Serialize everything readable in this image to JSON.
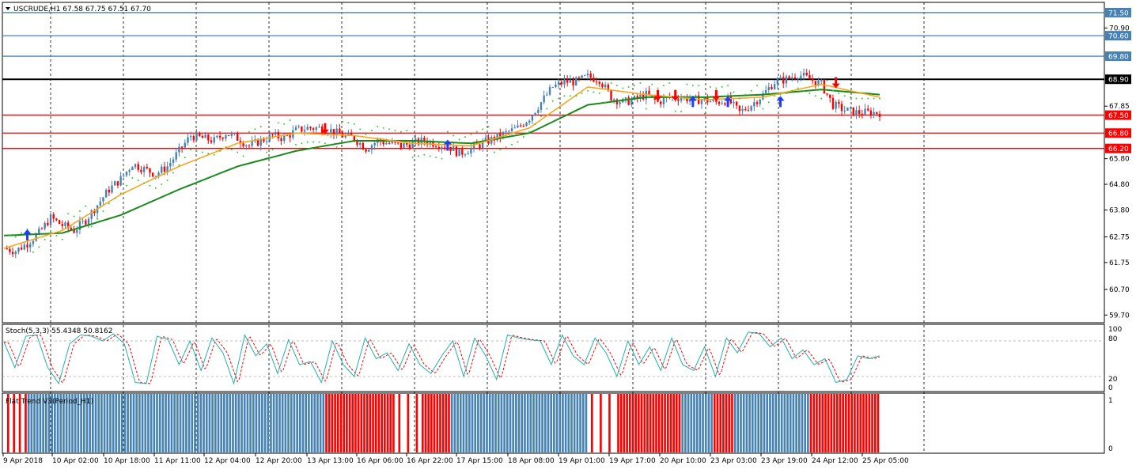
{
  "header": {
    "symbol_line": "USCRUDE,H1  67.58 67.75 67.51 67.70"
  },
  "stoch": {
    "label": "Stoch(5,3,3) 55.4348 50.8162",
    "ticks": [
      "100",
      "80",
      "20",
      "0"
    ]
  },
  "flat_trend": {
    "label": "Flat Trend V3(Period_H1)",
    "ticks": [
      "1",
      "0"
    ]
  },
  "colors": {
    "bull": "#4682b4",
    "bear": "#ff0000",
    "ma_fast": "#f5a623",
    "ma_slow": "#1a8a1a",
    "psar": "#32cd32",
    "res_line": "#4682b4",
    "sup_line": "#ff0000",
    "pivot_line": "#000000",
    "stoch_main": "#20b2aa",
    "stoch_signal": "#ff0000",
    "arrow_buy": "#1e3cff",
    "arrow_sell": "#ff0000"
  },
  "chart_data": {
    "type": "candlestick",
    "symbol": "USCRUDE",
    "timeframe": "H1",
    "ohlc_last": {
      "open": 67.58,
      "high": 67.75,
      "low": 67.51,
      "close": 67.7
    },
    "price_axis": {
      "range": [
        59.4,
        71.9
      ],
      "ticks": [
        "71.50",
        "70.90",
        "70.60",
        "69.80",
        "68.90",
        "67.85",
        "67.50",
        "66.80",
        "66.20",
        "65.80",
        "64.80",
        "63.80",
        "62.75",
        "61.75",
        "60.70",
        "59.70"
      ]
    },
    "time_axis": {
      "labels": [
        "9 Apr 2018",
        "10 Apr 02:00",
        "10 Apr 18:00",
        "11 Apr 11:00",
        "12 Apr 04:00",
        "12 Apr 20:00",
        "13 Apr 13:00",
        "16 Apr 06:00",
        "16 Apr 22:00",
        "17 Apr 15:00",
        "18 Apr 08:00",
        "19 Apr 01:00",
        "19 Apr 17:00",
        "20 Apr 10:00",
        "23 Apr 03:00",
        "23 Apr 19:00",
        "24 Apr 12:00",
        "25 Apr 05:00"
      ]
    },
    "horizontal_levels": [
      {
        "price": 71.5,
        "label": "71.50",
        "kind": "resistance"
      },
      {
        "price": 70.6,
        "label": "70.60",
        "kind": "resistance"
      },
      {
        "price": 69.8,
        "label": "69.80",
        "kind": "resistance"
      },
      {
        "price": 68.9,
        "label": "68.90",
        "kind": "pivot"
      },
      {
        "price": 67.5,
        "label": "67.50",
        "kind": "support"
      },
      {
        "price": 66.8,
        "label": "66.80",
        "kind": "support"
      },
      {
        "price": 66.2,
        "label": "66.20",
        "kind": "support"
      }
    ],
    "close_path": [
      [
        0,
        62.3
      ],
      [
        4,
        62.2
      ],
      [
        8,
        62.5
      ],
      [
        12,
        62.9
      ],
      [
        16,
        63.5
      ],
      [
        20,
        63.2
      ],
      [
        24,
        63.0
      ],
      [
        28,
        63.4
      ],
      [
        32,
        64.0
      ],
      [
        36,
        64.6
      ],
      [
        40,
        65.0
      ],
      [
        44,
        65.6
      ],
      [
        48,
        65.4
      ],
      [
        52,
        65.2
      ],
      [
        56,
        65.5
      ],
      [
        60,
        66.1
      ],
      [
        64,
        66.7
      ],
      [
        68,
        66.6
      ],
      [
        72,
        66.5
      ],
      [
        76,
        66.8
      ],
      [
        80,
        66.6
      ],
      [
        84,
        66.3
      ],
      [
        88,
        66.5
      ],
      [
        92,
        66.7
      ],
      [
        96,
        66.6
      ],
      [
        100,
        66.9
      ],
      [
        104,
        67.0
      ],
      [
        108,
        67.0
      ],
      [
        112,
        66.9
      ],
      [
        116,
        66.7
      ],
      [
        120,
        66.6
      ],
      [
        124,
        66.2
      ],
      [
        128,
        66.5
      ],
      [
        132,
        66.4
      ],
      [
        136,
        66.3
      ],
      [
        140,
        66.4
      ],
      [
        144,
        66.5
      ],
      [
        148,
        66.4
      ],
      [
        152,
        66.3
      ],
      [
        156,
        66.0
      ],
      [
        160,
        66.2
      ],
      [
        164,
        66.4
      ],
      [
        168,
        66.6
      ],
      [
        172,
        66.8
      ],
      [
        176,
        67.0
      ],
      [
        180,
        67.4
      ],
      [
        184,
        68.0
      ],
      [
        188,
        68.6
      ],
      [
        192,
        68.8
      ],
      [
        196,
        68.8
      ],
      [
        200,
        69.0
      ],
      [
        204,
        68.9
      ],
      [
        208,
        68.2
      ],
      [
        212,
        68.0
      ],
      [
        216,
        68.1
      ],
      [
        220,
        68.3
      ],
      [
        224,
        68.0
      ],
      [
        228,
        68.2
      ],
      [
        232,
        68.2
      ],
      [
        236,
        68.1
      ],
      [
        240,
        68.1
      ],
      [
        244,
        68.0
      ],
      [
        248,
        68.1
      ],
      [
        252,
        67.6
      ],
      [
        256,
        67.9
      ],
      [
        260,
        68.3
      ],
      [
        264,
        68.8
      ],
      [
        268,
        68.9
      ],
      [
        272,
        69.1
      ],
      [
        276,
        68.9
      ],
      [
        280,
        68.7
      ],
      [
        284,
        67.9
      ],
      [
        288,
        67.7
      ],
      [
        292,
        67.6
      ],
      [
        296,
        67.6
      ],
      [
        300,
        67.6
      ]
    ],
    "stoch_path": [
      [
        0,
        78
      ],
      [
        3,
        35
      ],
      [
        6,
        88
      ],
      [
        9,
        90
      ],
      [
        12,
        35
      ],
      [
        15,
        8
      ],
      [
        18,
        75
      ],
      [
        21,
        90
      ],
      [
        24,
        88
      ],
      [
        27,
        80
      ],
      [
        30,
        92
      ],
      [
        33,
        75
      ],
      [
        36,
        10
      ],
      [
        39,
        8
      ],
      [
        42,
        88
      ],
      [
        45,
        82
      ],
      [
        48,
        40
      ],
      [
        51,
        80
      ],
      [
        54,
        30
      ],
      [
        57,
        85
      ],
      [
        60,
        60
      ],
      [
        63,
        8
      ],
      [
        66,
        90
      ],
      [
        69,
        55
      ],
      [
        72,
        75
      ],
      [
        75,
        25
      ],
      [
        78,
        82
      ],
      [
        81,
        40
      ],
      [
        84,
        45
      ],
      [
        87,
        10
      ],
      [
        90,
        80
      ],
      [
        93,
        40
      ],
      [
        96,
        20
      ],
      [
        99,
        85
      ],
      [
        102,
        50
      ],
      [
        105,
        60
      ],
      [
        108,
        30
      ],
      [
        111,
        75
      ],
      [
        114,
        40
      ],
      [
        117,
        25
      ],
      [
        120,
        55
      ],
      [
        123,
        80
      ],
      [
        126,
        20
      ],
      [
        129,
        85
      ],
      [
        132,
        55
      ],
      [
        135,
        15
      ],
      [
        138,
        90
      ],
      [
        141,
        85
      ],
      [
        144,
        82
      ],
      [
        147,
        80
      ],
      [
        150,
        40
      ],
      [
        153,
        90
      ],
      [
        156,
        55
      ],
      [
        159,
        40
      ],
      [
        162,
        85
      ],
      [
        165,
        60
      ],
      [
        168,
        20
      ],
      [
        171,
        80
      ],
      [
        174,
        40
      ],
      [
        177,
        70
      ],
      [
        180,
        30
      ],
      [
        183,
        85
      ],
      [
        186,
        40
      ],
      [
        189,
        30
      ],
      [
        192,
        70
      ],
      [
        195,
        20
      ],
      [
        198,
        85
      ],
      [
        201,
        60
      ],
      [
        204,
        95
      ],
      [
        207,
        92
      ],
      [
        210,
        70
      ],
      [
        213,
        85
      ],
      [
        216,
        50
      ],
      [
        219,
        65
      ],
      [
        222,
        40
      ],
      [
        225,
        50
      ],
      [
        228,
        10
      ],
      [
        231,
        15
      ],
      [
        234,
        55
      ],
      [
        237,
        50
      ],
      [
        240,
        55
      ]
    ],
    "ma_fast_path": [
      [
        0,
        62.3
      ],
      [
        20,
        63.0
      ],
      [
        40,
        64.4
      ],
      [
        60,
        65.5
      ],
      [
        80,
        66.4
      ],
      [
        100,
        66.8
      ],
      [
        120,
        66.7
      ],
      [
        140,
        66.4
      ],
      [
        160,
        66.3
      ],
      [
        180,
        67.0
      ],
      [
        200,
        68.6
      ],
      [
        220,
        68.3
      ],
      [
        240,
        68.1
      ],
      [
        260,
        68.2
      ],
      [
        280,
        68.7
      ],
      [
        300,
        68.2
      ]
    ],
    "ma_slow_path": [
      [
        0,
        62.8
      ],
      [
        20,
        62.9
      ],
      [
        40,
        63.6
      ],
      [
        60,
        64.6
      ],
      [
        80,
        65.5
      ],
      [
        100,
        66.1
      ],
      [
        120,
        66.5
      ],
      [
        140,
        66.5
      ],
      [
        160,
        66.4
      ],
      [
        180,
        66.8
      ],
      [
        200,
        67.9
      ],
      [
        220,
        68.2
      ],
      [
        240,
        68.2
      ],
      [
        260,
        68.3
      ],
      [
        280,
        68.5
      ],
      [
        300,
        68.3
      ]
    ],
    "buy_arrows": [
      [
        8,
        62.8
      ],
      [
        152,
        66.3
      ],
      [
        236,
        68.0
      ],
      [
        248,
        68.0
      ],
      [
        266,
        68.0
      ]
    ],
    "sell_arrows": [
      [
        110,
        67.0
      ],
      [
        224,
        68.3
      ],
      [
        230,
        68.3
      ],
      [
        244,
        68.3
      ],
      [
        285,
        68.8
      ]
    ],
    "flat_trend_segments": [
      {
        "from": 0,
        "to": 8,
        "state": "mixed"
      },
      {
        "from": 8,
        "to": 110,
        "state": "up"
      },
      {
        "from": 110,
        "to": 134,
        "state": "down"
      },
      {
        "from": 134,
        "to": 143,
        "state": "flat"
      },
      {
        "from": 143,
        "to": 153,
        "state": "down"
      },
      {
        "from": 153,
        "to": 200,
        "state": "up"
      },
      {
        "from": 200,
        "to": 210,
        "state": "flat"
      },
      {
        "from": 210,
        "to": 232,
        "state": "down"
      },
      {
        "from": 232,
        "to": 243,
        "state": "up"
      },
      {
        "from": 243,
        "to": 250,
        "state": "down"
      },
      {
        "from": 250,
        "to": 276,
        "state": "up"
      },
      {
        "from": 276,
        "to": 300,
        "state": "down"
      }
    ]
  }
}
